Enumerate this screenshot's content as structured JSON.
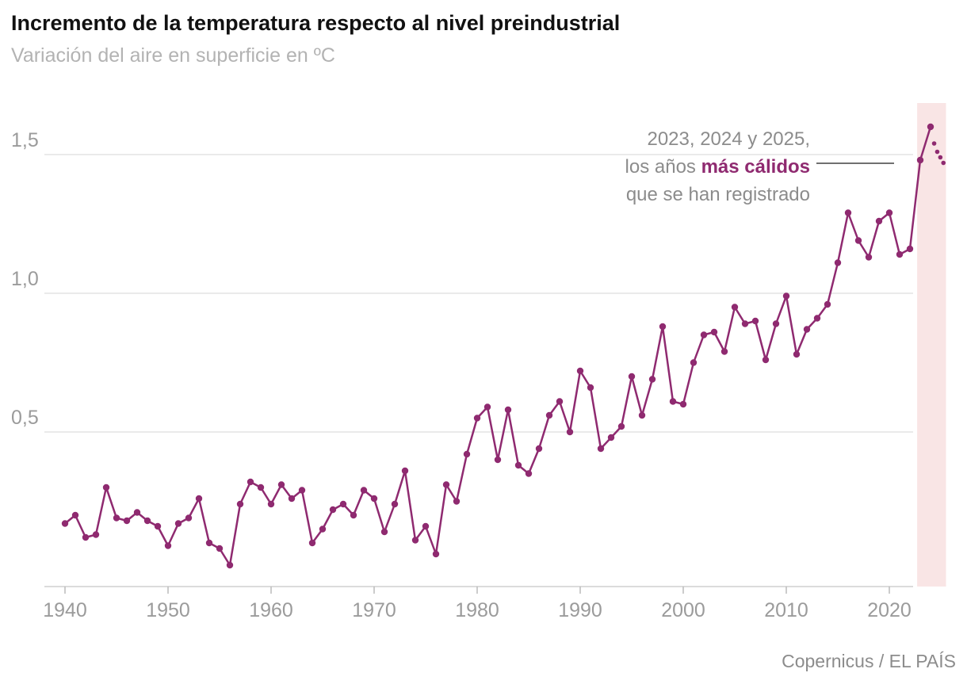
{
  "header": {
    "title": "Incremento de la temperatura respecto al nivel preindustrial",
    "subtitle": "Variación del aire en superficie en ºC"
  },
  "annotation": {
    "line1": "2023, 2024 y 2025,",
    "line2_prefix": "los años ",
    "line2_highlight": "más cálidos",
    "line3": "que se han registrado"
  },
  "source": "Copernicus / EL PAÍS",
  "colors": {
    "line": "#8f2a70",
    "band": "#f9e5e5",
    "grid": "#e4e4e4",
    "axis_line": "#cfcfcf",
    "tick": "#bbbbbb",
    "axis_text": "#9b9b9b",
    "annotation_text": "#8c8c8c",
    "connector": "#1a1a1a"
  },
  "chart_data": {
    "type": "line",
    "title": "Incremento de la temperatura respecto al nivel preindustrial",
    "ylabel": "Variación del aire en superficie en ºC",
    "xlim": [
      1938,
      2026
    ],
    "ylim": [
      -0.06,
      1.68
    ],
    "grid": true,
    "x_ticks": [
      1940,
      1950,
      1960,
      1970,
      1980,
      1990,
      2000,
      2010,
      2020
    ],
    "y_ticks": [
      {
        "value": 0.5,
        "label": "0,5"
      },
      {
        "value": 1.0,
        "label": "1,0"
      },
      {
        "value": 1.5,
        "label": "1,5"
      }
    ],
    "years": [
      1940,
      1941,
      1942,
      1943,
      1944,
      1945,
      1946,
      1947,
      1948,
      1949,
      1950,
      1951,
      1952,
      1953,
      1954,
      1955,
      1956,
      1957,
      1958,
      1959,
      1960,
      1961,
      1962,
      1963,
      1964,
      1965,
      1966,
      1967,
      1968,
      1969,
      1970,
      1971,
      1972,
      1973,
      1974,
      1975,
      1976,
      1977,
      1978,
      1979,
      1980,
      1981,
      1982,
      1983,
      1984,
      1985,
      1986,
      1987,
      1988,
      1989,
      1990,
      1991,
      1992,
      1993,
      1994,
      1995,
      1996,
      1997,
      1998,
      1999,
      2000,
      2001,
      2002,
      2003,
      2004,
      2005,
      2006,
      2007,
      2008,
      2009,
      2010,
      2011,
      2012,
      2013,
      2014,
      2015,
      2016,
      2017,
      2018,
      2019,
      2020,
      2021,
      2022,
      2023,
      2024
    ],
    "values": [
      0.17,
      0.2,
      0.12,
      0.13,
      0.3,
      0.19,
      0.18,
      0.21,
      0.18,
      0.16,
      0.09,
      0.17,
      0.19,
      0.26,
      0.1,
      0.08,
      0.02,
      0.24,
      0.32,
      0.3,
      0.24,
      0.31,
      0.26,
      0.29,
      0.1,
      0.15,
      0.22,
      0.24,
      0.2,
      0.29,
      0.26,
      0.14,
      0.24,
      0.36,
      0.11,
      0.16,
      0.06,
      0.31,
      0.25,
      0.42,
      0.55,
      0.59,
      0.4,
      0.58,
      0.38,
      0.35,
      0.44,
      0.56,
      0.61,
      0.5,
      0.72,
      0.66,
      0.44,
      0.48,
      0.52,
      0.7,
      0.56,
      0.69,
      0.88,
      0.61,
      0.6,
      0.75,
      0.85,
      0.86,
      0.79,
      0.95,
      0.89,
      0.9,
      0.76,
      0.89,
      0.99,
      0.78,
      0.87,
      0.91,
      0.96,
      1.11,
      1.29,
      1.19,
      1.13,
      1.26,
      1.29,
      1.14,
      1.16,
      1.48,
      1.6
    ],
    "partial_2025": {
      "note": "2025 provisional, shown as small dots",
      "years": [
        2024.35,
        2024.65,
        2024.95,
        2025.25
      ],
      "values": [
        1.54,
        1.51,
        1.49,
        1.47
      ]
    },
    "highlight_band_years": [
      2022.7,
      2025.5
    ],
    "legend_position": "none"
  }
}
